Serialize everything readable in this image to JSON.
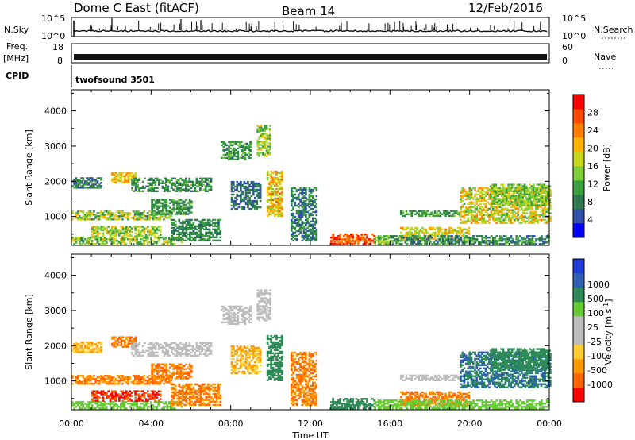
{
  "header": {
    "station": "Dome C East (fitACF)",
    "beam": "Beam 14",
    "date": "12/Feb/2016"
  },
  "strips": {
    "nsky_label": "N.Sky",
    "nsky_ticks": [
      "10^5",
      "10^0"
    ],
    "nsearch_label": "N.Search",
    "freq_label_1": "Freq.",
    "freq_label_2": "[MHz]",
    "freq_ticks": [
      "18",
      "8"
    ],
    "nave_label": "Nave",
    "nave_ticks": [
      "60",
      "0"
    ],
    "cpid_label": "CPID",
    "cpid_value": "twofsound 3501"
  },
  "colors": {
    "power": [
      "#0000ff",
      "#2f4fa8",
      "#2e7a4e",
      "#3aa040",
      "#7fcf3a",
      "#c8d81e",
      "#ffb400",
      "#ff8000",
      "#ff4800",
      "#ff0000"
    ],
    "velocity": [
      "#ff0000",
      "#ff6600",
      "#ff9900",
      "#ffcc33",
      "#bdbdbd",
      "#bdbdbd",
      "#66cc33",
      "#2e8b57",
      "#2f5fb0",
      "#1e3cd8"
    ]
  },
  "chart_data": [
    {
      "type": "heatmap",
      "name": "Power",
      "xlabel": "",
      "ylabel": "Slant Range [km]",
      "xlim": [
        0,
        24
      ],
      "ylim": [
        180,
        4600
      ],
      "yticks": [
        1000,
        2000,
        3000,
        4000
      ],
      "colorbar_label": "Power [dB]",
      "colorbar_ticks": [
        "4",
        "8",
        "12",
        "16",
        "20",
        "24",
        "28"
      ],
      "colorbar_range": [
        0,
        32
      ],
      "regions": [
        {
          "t": [
            0.0,
            5.5
          ],
          "r": [
            200,
            420
          ],
          "v": [
            8,
            20
          ]
        },
        {
          "t": [
            0.0,
            5.0
          ],
          "r": [
            900,
            1150
          ],
          "v": [
            8,
            22
          ]
        },
        {
          "t": [
            1.0,
            4.5
          ],
          "r": [
            420,
            720
          ],
          "v": [
            10,
            22
          ]
        },
        {
          "t": [
            2.0,
            3.2
          ],
          "r": [
            1950,
            2250
          ],
          "v": [
            16,
            24
          ]
        },
        {
          "t": [
            0.0,
            1.5
          ],
          "r": [
            1800,
            2100
          ],
          "v": [
            4,
            12
          ]
        },
        {
          "t": [
            3.0,
            7.0
          ],
          "r": [
            1700,
            2100
          ],
          "v": [
            6,
            14
          ]
        },
        {
          "t": [
            4.0,
            6.0
          ],
          "r": [
            1050,
            1500
          ],
          "v": [
            6,
            14
          ]
        },
        {
          "t": [
            5.0,
            7.5
          ],
          "r": [
            300,
            900
          ],
          "v": [
            6,
            12
          ]
        },
        {
          "t": [
            7.5,
            9.0
          ],
          "r": [
            2600,
            3100
          ],
          "v": [
            6,
            14
          ]
        },
        {
          "t": [
            8.0,
            9.5
          ],
          "r": [
            1200,
            2000
          ],
          "v": [
            4,
            10
          ]
        },
        {
          "t": [
            9.3,
            10.0
          ],
          "r": [
            2700,
            3600
          ],
          "v": [
            10,
            20
          ]
        },
        {
          "t": [
            9.8,
            10.6
          ],
          "r": [
            1000,
            2300
          ],
          "v": [
            14,
            26
          ]
        },
        {
          "t": [
            11.0,
            12.3
          ],
          "r": [
            300,
            1800
          ],
          "v": [
            4,
            12
          ]
        },
        {
          "t": [
            13.0,
            15.2
          ],
          "r": [
            200,
            500
          ],
          "v": [
            22,
            32
          ]
        },
        {
          "t": [
            15.2,
            16.0
          ],
          "r": [
            200,
            450
          ],
          "v": [
            10,
            20
          ]
        },
        {
          "t": [
            16.5,
            19.5
          ],
          "r": [
            1000,
            1150
          ],
          "v": [
            8,
            14
          ]
        },
        {
          "t": [
            16.5,
            20.0
          ],
          "r": [
            300,
            700
          ],
          "v": [
            14,
            24
          ]
        },
        {
          "t": [
            19.5,
            24.0
          ],
          "r": [
            800,
            1800
          ],
          "v": [
            12,
            24
          ]
        },
        {
          "t": [
            21.0,
            24.0
          ],
          "r": [
            1300,
            1900
          ],
          "v": [
            10,
            18
          ]
        },
        {
          "t": [
            16.0,
            24.0
          ],
          "r": [
            200,
            450
          ],
          "v": [
            4,
            14
          ]
        }
      ]
    },
    {
      "type": "heatmap",
      "name": "Velocity",
      "xlabel": "Time UT",
      "ylabel": "Slant Range [km]",
      "xlim": [
        0,
        24
      ],
      "ylim": [
        180,
        4600
      ],
      "yticks": [
        1000,
        2000,
        3000,
        4000
      ],
      "xticks": [
        "00:00",
        "04:00",
        "08:00",
        "12:00",
        "16:00",
        "20:00",
        "00:00"
      ],
      "colorbar_label": "Velocity [m s-1]",
      "colorbar_ticks": [
        "-1000",
        "-500",
        "-100",
        "-25",
        "25",
        "100",
        "500",
        "1000"
      ],
      "colorbar_range": [
        0,
        10
      ],
      "regions": [
        {
          "t": [
            0.0,
            5.5
          ],
          "r": [
            200,
            420
          ],
          "v": [
            6,
            7
          ]
        },
        {
          "t": [
            0.0,
            5.0
          ],
          "r": [
            900,
            1150
          ],
          "v": [
            1,
            3
          ]
        },
        {
          "t": [
            1.0,
            4.5
          ],
          "r": [
            420,
            720
          ],
          "v": [
            0,
            2
          ]
        },
        {
          "t": [
            2.0,
            3.2
          ],
          "r": [
            1950,
            2250
          ],
          "v": [
            1,
            3
          ]
        },
        {
          "t": [
            0.0,
            1.5
          ],
          "r": [
            1800,
            2100
          ],
          "v": [
            2,
            4
          ]
        },
        {
          "t": [
            3.0,
            7.0
          ],
          "r": [
            1700,
            2100
          ],
          "v": [
            4,
            5
          ]
        },
        {
          "t": [
            4.0,
            6.0
          ],
          "r": [
            1050,
            1500
          ],
          "v": [
            1,
            3
          ]
        },
        {
          "t": [
            5.0,
            7.5
          ],
          "r": [
            300,
            900
          ],
          "v": [
            1,
            3
          ]
        },
        {
          "t": [
            7.5,
            9.0
          ],
          "r": [
            2600,
            3100
          ],
          "v": [
            4,
            5
          ]
        },
        {
          "t": [
            8.0,
            9.5
          ],
          "r": [
            1200,
            2000
          ],
          "v": [
            2,
            4
          ]
        },
        {
          "t": [
            9.3,
            10.0
          ],
          "r": [
            2700,
            3600
          ],
          "v": [
            4,
            5
          ]
        },
        {
          "t": [
            9.8,
            10.6
          ],
          "r": [
            1000,
            2300
          ],
          "v": [
            7,
            8
          ]
        },
        {
          "t": [
            11.0,
            12.3
          ],
          "r": [
            300,
            1800
          ],
          "v": [
            1,
            3
          ]
        },
        {
          "t": [
            13.0,
            15.2
          ],
          "r": [
            200,
            500
          ],
          "v": [
            7,
            8
          ]
        },
        {
          "t": [
            15.2,
            16.0
          ],
          "r": [
            200,
            450
          ],
          "v": [
            6,
            7
          ]
        },
        {
          "t": [
            16.5,
            19.5
          ],
          "r": [
            1000,
            1150
          ],
          "v": [
            4,
            5
          ]
        },
        {
          "t": [
            16.5,
            20.0
          ],
          "r": [
            300,
            700
          ],
          "v": [
            1,
            3
          ]
        },
        {
          "t": [
            19.5,
            24.0
          ],
          "r": [
            800,
            1800
          ],
          "v": [
            7,
            9
          ]
        },
        {
          "t": [
            21.0,
            24.0
          ],
          "r": [
            1300,
            1900
          ],
          "v": [
            7,
            8
          ]
        },
        {
          "t": [
            16.0,
            24.0
          ],
          "r": [
            200,
            450
          ],
          "v": [
            6,
            7
          ]
        }
      ]
    }
  ]
}
